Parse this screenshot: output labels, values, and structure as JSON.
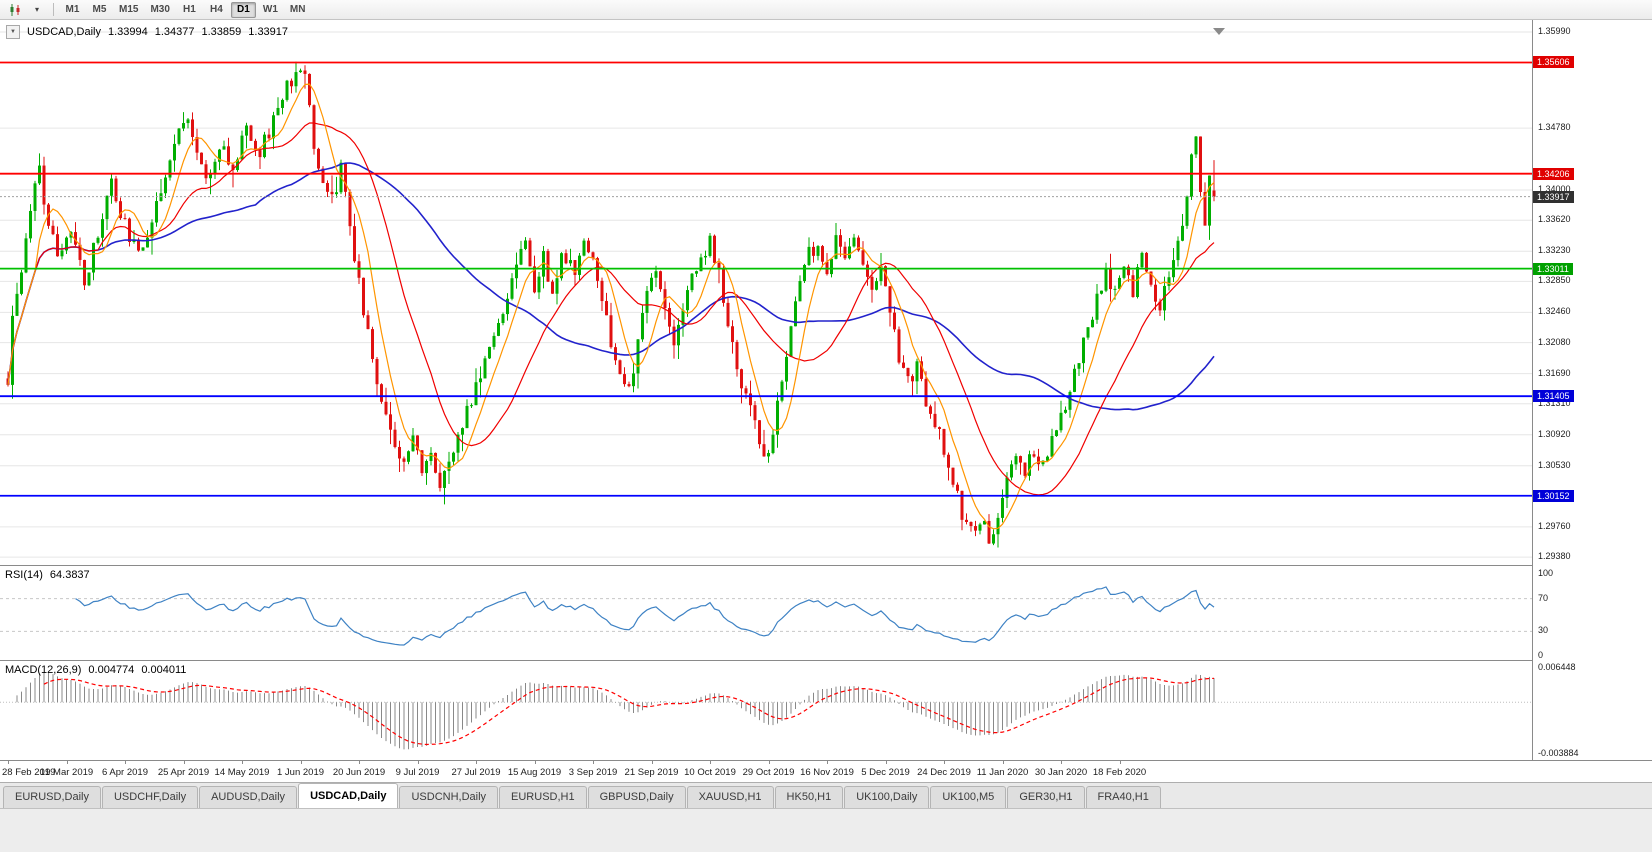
{
  "toolbar": {
    "timeframes": [
      "M1",
      "M5",
      "M15",
      "M30",
      "H1",
      "H4",
      "D1",
      "W1",
      "MN"
    ],
    "active_timeframe": "D1",
    "chart_type_caret": "▾"
  },
  "chart": {
    "collapse_glyph": "▼",
    "symbol": "USDCAD,Daily",
    "open": "1.33994",
    "high": "1.34377",
    "low": "1.33859",
    "close": "1.33917"
  },
  "price_axis": {
    "labels": [
      {
        "text": "1.35990",
        "price": 1.3599,
        "type": "grid"
      },
      {
        "text": "1.35606",
        "price": 1.35606,
        "type": "red"
      },
      {
        "text": "1.34780",
        "price": 1.3478,
        "type": "grid"
      },
      {
        "text": "1.34206",
        "price": 1.34206,
        "type": "red"
      },
      {
        "text": "1.34000",
        "price": 1.34,
        "type": "grid"
      },
      {
        "text": "1.33917",
        "price": 1.33917,
        "type": "current"
      },
      {
        "text": "1.33620",
        "price": 1.3362,
        "type": "grid"
      },
      {
        "text": "1.33230",
        "price": 1.3323,
        "type": "grid"
      },
      {
        "text": "1.33011",
        "price": 1.33011,
        "type": "green"
      },
      {
        "text": "1.32850",
        "price": 1.3285,
        "type": "grid"
      },
      {
        "text": "1.32460",
        "price": 1.3246,
        "type": "grid"
      },
      {
        "text": "1.32080",
        "price": 1.3208,
        "type": "grid"
      },
      {
        "text": "1.31690",
        "price": 1.3169,
        "type": "grid"
      },
      {
        "text": "1.31405",
        "price": 1.31405,
        "type": "blue"
      },
      {
        "text": "1.31310",
        "price": 1.3131,
        "type": "grid"
      },
      {
        "text": "1.30920",
        "price": 1.3092,
        "type": "grid"
      },
      {
        "text": "1.30530",
        "price": 1.3053,
        "type": "grid"
      },
      {
        "text": "1.30152",
        "price": 1.30152,
        "type": "blue"
      },
      {
        "text": "1.29760",
        "price": 1.2976,
        "type": "grid"
      },
      {
        "text": "1.29380",
        "price": 1.2938,
        "type": "grid"
      }
    ]
  },
  "date_axis": [
    "28 Feb 2019",
    "19 Mar 2019",
    "6 Apr 2019",
    "25 Apr 2019",
    "14 May 2019",
    "1 Jun 2019",
    "20 Jun 2019",
    "9 Jul 2019",
    "27 Jul 2019",
    "15 Aug 2019",
    "3 Sep 2019",
    "21 Sep 2019",
    "10 Oct 2019",
    "29 Oct 2019",
    "16 Nov 2019",
    "5 Dec 2019",
    "24 Dec 2019",
    "11 Jan 2020",
    "30 Jan 2020",
    "18 Feb 2020"
  ],
  "rsi": {
    "name": "RSI(14)",
    "value": "64.3837",
    "axis_labels": [
      {
        "text": "100",
        "value": 100
      },
      {
        "text": "70",
        "value": 70
      },
      {
        "text": "30",
        "value": 30
      },
      {
        "text": "0",
        "value": 0
      }
    ],
    "levels": [
      70,
      30
    ]
  },
  "macd": {
    "name": "MACD(12,26,9)",
    "main": "0.004774",
    "signal": "0.004011",
    "axis_top": "0.006448",
    "axis_bottom": "-0.003884"
  },
  "tabs": {
    "items": [
      "EURUSD,Daily",
      "USDCHF,Daily",
      "AUDUSD,Daily",
      "USDCAD,Daily",
      "USDCNH,Daily",
      "EURUSD,H1",
      "GBPUSD,Daily",
      "XAUUSD,H1",
      "HK50,H1",
      "UK100,Daily",
      "UK100,M5",
      "GER30,H1",
      "FRA40,H1"
    ],
    "active": "USDCAD,Daily"
  },
  "colors": {
    "candle_up": "#00AE00",
    "candle_down": "#E01010",
    "ma_fast": "#FF9500",
    "ma_mid": "#F00000",
    "ma_slow": "#2222CC",
    "level_red": "#FF0000",
    "level_green": "#00C000",
    "level_blue": "#0000FF",
    "tag_red": "#E00000",
    "tag_green": "#00A000",
    "tag_blue": "#0000D8",
    "tag_current": "#303030",
    "grid": "#E6E6E6",
    "rsi_line": "#3E82C4",
    "rsi_level": "#C8C8C8",
    "macd_hist": "#888888",
    "macd_signal": "#FF0000",
    "bid_line": "#A0A0A0",
    "shift_marker": "#8a8a8a"
  },
  "chart_data": {
    "type": "candlestick",
    "symbol": "USDCAD",
    "timeframe": "Daily",
    "title": "USDCAD,Daily",
    "bar_count": 269,
    "last_bar": {
      "open": 1.33994,
      "high": 1.34377,
      "low": 1.33859,
      "close": 1.33917
    },
    "y_axis": {
      "min": 1.29318,
      "max": 1.3604
    },
    "x_axis_dates": [
      "28 Feb 2019",
      "19 Mar 2019",
      "6 Apr 2019",
      "25 Apr 2019",
      "14 May 2019",
      "1 Jun 2019",
      "20 Jun 2019",
      "9 Jul 2019",
      "27 Jul 2019",
      "15 Aug 2019",
      "3 Sep 2019",
      "21 Sep 2019",
      "10 Oct 2019",
      "29 Oct 2019",
      "16 Nov 2019",
      "5 Dec 2019",
      "24 Dec 2019",
      "11 Jan 2020",
      "30 Jan 2020",
      "18 Feb 2020"
    ],
    "horizontal_lines": [
      {
        "price": 1.35606,
        "color": "#FF0000",
        "role": "resistance"
      },
      {
        "price": 1.34206,
        "color": "#FF0000",
        "role": "resistance"
      },
      {
        "price": 1.33011,
        "color": "#00C000",
        "role": "pivot"
      },
      {
        "price": 1.31405,
        "color": "#0000FF",
        "role": "support"
      },
      {
        "price": 1.30152,
        "color": "#0000FF",
        "role": "support"
      }
    ],
    "moving_averages": [
      {
        "period": 7,
        "color": "#FF9500"
      },
      {
        "period": 21,
        "color": "#F00000"
      },
      {
        "period": 56,
        "color": "#2222CC"
      }
    ],
    "indicators": {
      "rsi": {
        "period": 14,
        "current": 64.3837,
        "range": [
          0,
          100
        ],
        "levels": [
          30,
          70
        ]
      },
      "macd": {
        "fast": 12,
        "slow": 26,
        "signal": 9,
        "current_main": 0.004774,
        "current_signal": 0.004011
      }
    },
    "close_path_anchors": [
      [
        0,
        1.3155
      ],
      [
        1,
        1.3235
      ],
      [
        3,
        1.329
      ],
      [
        5,
        1.338
      ],
      [
        7,
        1.342
      ],
      [
        9,
        1.3365
      ],
      [
        11,
        1.331
      ],
      [
        14,
        1.3345
      ],
      [
        17,
        1.329
      ],
      [
        20,
        1.334
      ],
      [
        23,
        1.341
      ],
      [
        26,
        1.3355
      ],
      [
        29,
        1.3315
      ],
      [
        32,
        1.3365
      ],
      [
        35,
        1.3415
      ],
      [
        38,
        1.348
      ],
      [
        40,
        1.3495
      ],
      [
        42,
        1.345
      ],
      [
        44,
        1.341
      ],
      [
        47,
        1.346
      ],
      [
        50,
        1.343
      ],
      [
        53,
        1.3475
      ],
      [
        56,
        1.3445
      ],
      [
        59,
        1.349
      ],
      [
        62,
        1.353
      ],
      [
        64,
        1.3552
      ],
      [
        66,
        1.355
      ],
      [
        68,
        1.346
      ],
      [
        70,
        1.341
      ],
      [
        72,
        1.3385
      ],
      [
        74,
        1.343
      ],
      [
        76,
        1.3345
      ],
      [
        78,
        1.329
      ],
      [
        80,
        1.3215
      ],
      [
        82,
        1.3155
      ],
      [
        85,
        1.31
      ],
      [
        88,
        1.3055
      ],
      [
        90,
        1.309
      ],
      [
        92,
        1.3045
      ],
      [
        94,
        1.308
      ],
      [
        96,
        1.303
      ],
      [
        98,
        1.3065
      ],
      [
        101,
        1.3105
      ],
      [
        104,
        1.3155
      ],
      [
        107,
        1.3205
      ],
      [
        110,
        1.325
      ],
      [
        113,
        1.3305
      ],
      [
        115,
        1.3335
      ],
      [
        117,
        1.3275
      ],
      [
        119,
        1.3315
      ],
      [
        121,
        1.3265
      ],
      [
        123,
        1.3325
      ],
      [
        126,
        1.3295
      ],
      [
        128,
        1.3335
      ],
      [
        130,
        1.3305
      ],
      [
        133,
        1.3235
      ],
      [
        136,
        1.3165
      ],
      [
        138,
        1.3145
      ],
      [
        140,
        1.3205
      ],
      [
        142,
        1.3265
      ],
      [
        144,
        1.3295
      ],
      [
        146,
        1.3255
      ],
      [
        148,
        1.3215
      ],
      [
        150,
        1.3245
      ],
      [
        152,
        1.3295
      ],
      [
        154,
        1.332
      ],
      [
        156,
        1.3335
      ],
      [
        158,
        1.3295
      ],
      [
        161,
        1.3205
      ],
      [
        164,
        1.3135
      ],
      [
        167,
        1.3085
      ],
      [
        169,
        1.3062
      ],
      [
        171,
        1.313
      ],
      [
        173,
        1.32
      ],
      [
        175,
        1.326
      ],
      [
        177,
        1.331
      ],
      [
        180,
        1.3335
      ],
      [
        182,
        1.3305
      ],
      [
        184,
        1.3335
      ],
      [
        186,
        1.3305
      ],
      [
        188,
        1.3335
      ],
      [
        190,
        1.3305
      ],
      [
        192,
        1.3275
      ],
      [
        194,
        1.3315
      ],
      [
        196,
        1.3255
      ],
      [
        198,
        1.3185
      ],
      [
        200,
        1.3155
      ],
      [
        202,
        1.3175
      ],
      [
        204,
        1.3135
      ],
      [
        206,
        1.3105
      ],
      [
        208,
        1.3075
      ],
      [
        210,
        1.3035
      ],
      [
        212,
        1.2995
      ],
      [
        214,
        1.2968
      ],
      [
        216,
        1.299
      ],
      [
        218,
        1.2958
      ],
      [
        220,
        1.2992
      ],
      [
        222,
        1.3032
      ],
      [
        224,
        1.3062
      ],
      [
        226,
        1.3048
      ],
      [
        228,
        1.3072
      ],
      [
        230,
        1.3058
      ],
      [
        232,
        1.3082
      ],
      [
        234,
        1.3112
      ],
      [
        236,
        1.3152
      ],
      [
        238,
        1.3192
      ],
      [
        240,
        1.3232
      ],
      [
        242,
        1.3262
      ],
      [
        244,
        1.3292
      ],
      [
        246,
        1.3272
      ],
      [
        248,
        1.3302
      ],
      [
        250,
        1.3272
      ],
      [
        252,
        1.3312
      ],
      [
        254,
        1.3282
      ],
      [
        256,
        1.3252
      ],
      [
        258,
        1.3292
      ],
      [
        260,
        1.333
      ],
      [
        262,
        1.34
      ],
      [
        263,
        1.3445
      ],
      [
        264,
        1.3462
      ],
      [
        265,
        1.339
      ],
      [
        266,
        1.3348
      ],
      [
        267,
        1.3425
      ],
      [
        268,
        1.33917
      ]
    ]
  }
}
